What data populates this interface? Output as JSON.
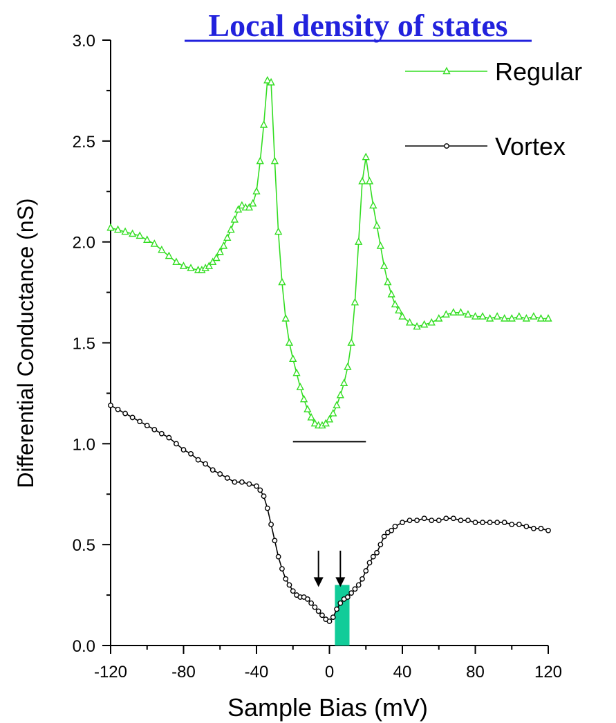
{
  "chart_data": {
    "type": "line",
    "title": "Local density of states",
    "xlabel": "Sample Bias (mV)",
    "ylabel": "Differential Conductance (nS)",
    "xlim": [
      -120,
      120
    ],
    "ylim": [
      0.0,
      3.0
    ],
    "xticks": [
      "-120",
      "-80",
      "-40",
      "0",
      "40",
      "80",
      "120"
    ],
    "xtick_values": [
      -120,
      -80,
      -40,
      0,
      40,
      80,
      120
    ],
    "yticks": [
      "0.0",
      "0.5",
      "1.0",
      "1.5",
      "2.0",
      "2.5",
      "3.0"
    ],
    "ytick_values": [
      0.0,
      0.5,
      1.0,
      1.5,
      2.0,
      2.5,
      3.0
    ],
    "grid": false,
    "legend_position": "top-right",
    "series": [
      {
        "name": "Regular",
        "color": "#33dd22",
        "marker": "open-triangle",
        "x": [
          -120,
          -116,
          -112,
          -108,
          -104,
          -100,
          -96,
          -92,
          -88,
          -84,
          -80,
          -76,
          -72,
          -70,
          -68,
          -66,
          -64,
          -62,
          -60,
          -58,
          -56,
          -54,
          -52,
          -50,
          -48,
          -46,
          -44,
          -42,
          -40,
          -38,
          -36,
          -34,
          -32,
          -30,
          -28,
          -26,
          -24,
          -22,
          -20,
          -18,
          -16,
          -14,
          -12,
          -10,
          -8,
          -6,
          -4,
          -2,
          0,
          2,
          4,
          6,
          8,
          10,
          12,
          14,
          16,
          18,
          20,
          22,
          24,
          26,
          28,
          30,
          32,
          34,
          36,
          38,
          40,
          44,
          48,
          52,
          56,
          60,
          64,
          68,
          72,
          76,
          80,
          84,
          88,
          92,
          96,
          100,
          104,
          108,
          112,
          116,
          120
        ],
        "y": [
          2.07,
          2.06,
          2.05,
          2.04,
          2.03,
          2.01,
          1.99,
          1.96,
          1.93,
          1.9,
          1.88,
          1.87,
          1.86,
          1.86,
          1.87,
          1.88,
          1.9,
          1.92,
          1.95,
          1.98,
          2.02,
          2.06,
          2.11,
          2.16,
          2.18,
          2.17,
          2.17,
          2.19,
          2.25,
          2.4,
          2.58,
          2.8,
          2.79,
          2.4,
          2.05,
          1.8,
          1.62,
          1.5,
          1.42,
          1.35,
          1.28,
          1.22,
          1.17,
          1.13,
          1.1,
          1.09,
          1.09,
          1.1,
          1.12,
          1.15,
          1.19,
          1.24,
          1.3,
          1.38,
          1.5,
          1.7,
          2.0,
          2.3,
          2.42,
          2.3,
          2.18,
          2.08,
          1.98,
          1.88,
          1.8,
          1.74,
          1.69,
          1.66,
          1.63,
          1.6,
          1.58,
          1.59,
          1.6,
          1.62,
          1.64,
          1.65,
          1.65,
          1.64,
          1.63,
          1.63,
          1.62,
          1.63,
          1.62,
          1.62,
          1.63,
          1.62,
          1.63,
          1.62,
          1.62
        ]
      },
      {
        "name": "Vortex",
        "color": "#000000",
        "marker": "open-circle",
        "x": [
          -120,
          -116,
          -112,
          -108,
          -104,
          -100,
          -96,
          -92,
          -88,
          -84,
          -80,
          -76,
          -72,
          -68,
          -64,
          -60,
          -56,
          -52,
          -48,
          -44,
          -40,
          -38,
          -36,
          -34,
          -32,
          -30,
          -28,
          -26,
          -24,
          -22,
          -20,
          -18,
          -16,
          -14,
          -12,
          -10,
          -8,
          -6,
          -4,
          -2,
          0,
          2,
          4,
          6,
          8,
          10,
          12,
          14,
          16,
          18,
          20,
          22,
          24,
          26,
          28,
          30,
          32,
          34,
          36,
          40,
          44,
          48,
          52,
          56,
          60,
          64,
          68,
          72,
          76,
          80,
          84,
          88,
          92,
          96,
          100,
          104,
          108,
          112,
          116,
          120
        ],
        "y": [
          1.19,
          1.17,
          1.15,
          1.13,
          1.11,
          1.09,
          1.07,
          1.05,
          1.03,
          1.0,
          0.97,
          0.95,
          0.92,
          0.9,
          0.87,
          0.85,
          0.83,
          0.81,
          0.81,
          0.8,
          0.79,
          0.77,
          0.74,
          0.68,
          0.6,
          0.52,
          0.44,
          0.38,
          0.33,
          0.3,
          0.27,
          0.25,
          0.24,
          0.24,
          0.23,
          0.21,
          0.19,
          0.17,
          0.15,
          0.13,
          0.12,
          0.14,
          0.18,
          0.21,
          0.23,
          0.24,
          0.26,
          0.28,
          0.3,
          0.33,
          0.37,
          0.41,
          0.44,
          0.46,
          0.5,
          0.54,
          0.56,
          0.57,
          0.59,
          0.61,
          0.62,
          0.62,
          0.63,
          0.62,
          0.62,
          0.63,
          0.63,
          0.62,
          0.62,
          0.61,
          0.61,
          0.61,
          0.61,
          0.61,
          0.6,
          0.6,
          0.59,
          0.58,
          0.58,
          0.57
        ]
      }
    ],
    "annotations": {
      "reference_line": {
        "x": [
          -20,
          20
        ],
        "y": 1.01,
        "color": "#000000"
      },
      "arrows": [
        {
          "x": -6,
          "y_top": 0.47,
          "y_tip": 0.29
        },
        {
          "x": 6,
          "y_top": 0.47,
          "y_tip": 0.29
        }
      ],
      "highlight_bar": {
        "x": [
          3,
          11
        ],
        "y": [
          0.0,
          0.3
        ],
        "color": "#11cc99"
      }
    }
  }
}
